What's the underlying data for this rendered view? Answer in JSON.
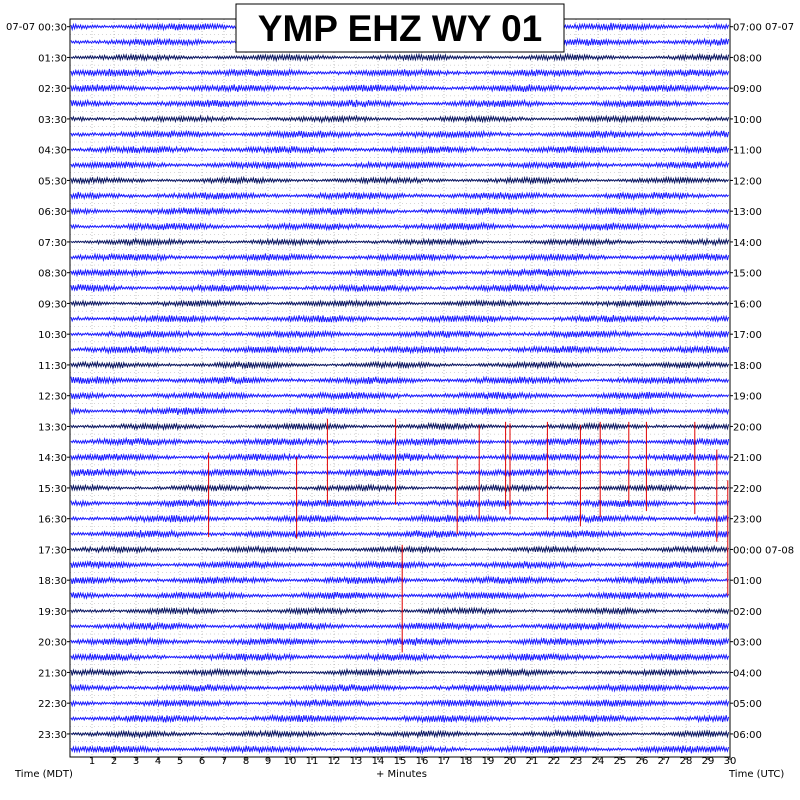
{
  "title": "YMP EHZ WY 01",
  "left_date": "07-07",
  "right_date": "07-07",
  "left_axis_label": "Time (MDT)",
  "right_axis_label": "Time (UTC)",
  "x_axis_label": "+ Minutes",
  "colors": {
    "trace_dark": "#0a1560",
    "trace_bright": "#1a1aff",
    "event": "#e00000",
    "grid": "#9a9a9a",
    "frame": "#000000",
    "background": "#ffffff"
  },
  "chart_data": {
    "type": "line",
    "description_type": "helicorder",
    "x_range_minutes": [
      0,
      30
    ],
    "x_ticks": [
      "1",
      "2",
      "3",
      "4",
      "5",
      "6",
      "7",
      "8",
      "9",
      "10",
      "11",
      "12",
      "13",
      "14",
      "15",
      "16",
      "17",
      "18",
      "19",
      "20",
      "21",
      "22",
      "23",
      "24",
      "25",
      "26",
      "27",
      "28",
      "29",
      "30"
    ],
    "rows_total": 48,
    "row_minutes": 30,
    "left_time_labels": [
      "00:30",
      "01:30",
      "02:30",
      "03:30",
      "04:30",
      "05:30",
      "06:30",
      "07:30",
      "08:30",
      "09:30",
      "10:30",
      "11:30",
      "12:30",
      "13:30",
      "14:30",
      "15:30",
      "16:30",
      "17:30",
      "18:30",
      "19:30",
      "20:30",
      "21:30",
      "22:30",
      "23:30"
    ],
    "right_time_labels": [
      "07:00",
      "08:00",
      "09:00",
      "10:00",
      "11:00",
      "12:00",
      "13:00",
      "14:00",
      "15:00",
      "16:00",
      "17:00",
      "18:00",
      "19:00",
      "20:00",
      "21:00",
      "22:00",
      "23:00",
      "00:00 07-08",
      "01:00",
      "02:00",
      "03:00",
      "04:00",
      "05:00",
      "06:00"
    ],
    "row_colors": [
      "trace_bright",
      "trace_bright",
      "trace_dark",
      "trace_bright"
    ],
    "events": [
      {
        "minute": 6.3,
        "row_start": 28.2,
        "row_end": 33.7
      },
      {
        "minute": 10.3,
        "row_start": 28.5,
        "row_end": 33.8
      },
      {
        "minute": 11.7,
        "row_start": 26.0,
        "row_end": 31.5
      },
      {
        "minute": 14.8,
        "row_start": 26.0,
        "row_end": 31.6
      },
      {
        "minute": 15.1,
        "row_start": 34.2,
        "row_end": 41.2
      },
      {
        "minute": 17.6,
        "row_start": 28.5,
        "row_end": 33.5
      },
      {
        "minute": 18.6,
        "row_start": 26.4,
        "row_end": 32.5
      },
      {
        "minute": 19.8,
        "row_start": 26.2,
        "row_end": 31.9
      },
      {
        "minute": 20.0,
        "row_start": 26.3,
        "row_end": 32.2
      },
      {
        "minute": 21.7,
        "row_start": 26.2,
        "row_end": 32.5
      },
      {
        "minute": 23.2,
        "row_start": 26.4,
        "row_end": 33.0
      },
      {
        "minute": 24.1,
        "row_start": 26.2,
        "row_end": 32.4
      },
      {
        "minute": 25.4,
        "row_start": 26.2,
        "row_end": 31.5
      },
      {
        "minute": 26.2,
        "row_start": 26.2,
        "row_end": 32.0
      },
      {
        "minute": 28.4,
        "row_start": 26.2,
        "row_end": 32.2
      },
      {
        "minute": 29.4,
        "row_start": 28.0,
        "row_end": 34.0
      },
      {
        "minute": 29.9,
        "row_start": 30.0,
        "row_end": 37.5
      }
    ]
  }
}
